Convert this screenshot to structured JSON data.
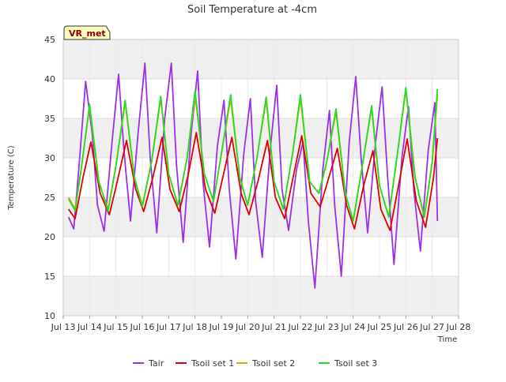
{
  "chart_data": {
    "type": "line",
    "title": "Soil Temperature at -4cm",
    "xlabel": "Time",
    "ylabel": "Temperature (C)",
    "badge": "VR_met",
    "xlim": [
      13,
      28
    ],
    "ylim": [
      10,
      45
    ],
    "x_ticks": [
      13,
      14,
      15,
      16,
      17,
      18,
      19,
      20,
      21,
      22,
      23,
      24,
      25,
      26,
      27,
      28
    ],
    "x_tick_labels": [
      "Jul 13",
      "Jul 14",
      "Jul 15",
      "Jul 16",
      "Jul 17",
      "Jul 18",
      "Jul 19",
      "Jul 20",
      "Jul 21",
      "Jul 22",
      "Jul 23",
      "Jul 24",
      "Jul 25",
      "Jul 26",
      "Jul 27",
      "Jul 28"
    ],
    "y_ticks": [
      10,
      15,
      20,
      25,
      30,
      35,
      40,
      45
    ],
    "grid": true,
    "legend_position": "bottom",
    "series": [
      {
        "name": "Tair",
        "color": "#9b30e8",
        "x": [
          13.2,
          13.4,
          13.6,
          13.85,
          14.1,
          14.3,
          14.55,
          14.85,
          15.1,
          15.3,
          15.55,
          15.85,
          16.1,
          16.3,
          16.55,
          16.85,
          17.1,
          17.3,
          17.55,
          17.85,
          18.1,
          18.3,
          18.55,
          18.85,
          19.1,
          19.3,
          19.55,
          19.85,
          20.1,
          20.3,
          20.55,
          20.85,
          21.1,
          21.3,
          21.55,
          21.85,
          22.1,
          22.3,
          22.55,
          22.85,
          23.1,
          23.3,
          23.55,
          23.85,
          24.1,
          24.3,
          24.55,
          24.85,
          25.1,
          25.3,
          25.55,
          25.85,
          26.1,
          26.3,
          26.55,
          26.85,
          27.1,
          27.2
        ],
        "y": [
          22.5,
          21.0,
          29.0,
          39.7,
          33.0,
          24.0,
          20.7,
          32.0,
          40.6,
          31.0,
          22.0,
          33.5,
          42.0,
          30.0,
          20.5,
          35.0,
          42.0,
          29.0,
          19.3,
          33.0,
          41.0,
          27.0,
          18.7,
          31.5,
          37.3,
          26.0,
          17.2,
          30.5,
          37.5,
          24.5,
          17.4,
          31.0,
          39.2,
          26.0,
          20.8,
          28.5,
          32.0,
          22.0,
          13.5,
          28.5,
          36.0,
          24.0,
          15.0,
          32.0,
          40.3,
          30.0,
          20.5,
          32.0,
          39.0,
          28.0,
          16.5,
          30.0,
          36.5,
          26.0,
          18.2,
          31.0,
          37.0,
          22.0
        ]
      },
      {
        "name": "Tsoil set 1",
        "color": "#e00000",
        "x": [
          13.2,
          13.45,
          13.75,
          14.05,
          14.4,
          14.75,
          15.05,
          15.4,
          15.75,
          16.05,
          16.4,
          16.75,
          17.05,
          17.4,
          17.75,
          18.05,
          18.4,
          18.75,
          19.05,
          19.4,
          19.75,
          20.05,
          20.4,
          20.75,
          21.05,
          21.4,
          21.75,
          22.05,
          22.4,
          22.75,
          23.05,
          23.4,
          23.75,
          24.05,
          24.4,
          24.75,
          25.05,
          25.4,
          25.75,
          26.05,
          26.4,
          26.75,
          27.05,
          27.2
        ],
        "y": [
          23.5,
          22.3,
          27.5,
          32.0,
          25.5,
          22.8,
          27.0,
          32.2,
          26.0,
          23.2,
          27.5,
          32.6,
          26.0,
          23.2,
          28.0,
          33.2,
          26.0,
          23.0,
          27.5,
          32.6,
          25.5,
          22.8,
          27.2,
          32.2,
          25.0,
          22.3,
          28.0,
          32.8,
          25.5,
          23.8,
          27.2,
          31.2,
          24.0,
          21.0,
          26.5,
          30.9,
          23.5,
          20.8,
          27.0,
          32.4,
          24.5,
          21.2,
          27.5,
          32.5
        ]
      },
      {
        "name": "Tsoil set 2",
        "color": "#f0a000",
        "x": [
          13.2,
          13.45,
          13.7,
          14.0,
          14.35,
          14.7,
          15.0,
          15.35,
          15.7,
          16.0,
          16.35,
          16.7,
          17.0,
          17.35,
          17.7,
          18.0,
          18.35,
          18.7,
          19.0,
          19.35,
          19.7,
          20.0,
          20.35,
          20.7,
          21.0,
          21.35,
          21.7,
          22.0,
          22.35,
          22.7,
          23.0,
          23.35,
          23.7,
          24.0,
          24.35,
          24.7,
          25.0,
          25.35,
          25.7,
          26.0,
          26.35,
          26.7,
          27.0,
          27.2
        ],
        "y": [
          25.0,
          23.5,
          29.0,
          36.5,
          27.0,
          23.5,
          29.0,
          37.0,
          27.5,
          24.0,
          29.5,
          37.5,
          28.0,
          24.0,
          30.0,
          38.0,
          28.0,
          24.5,
          30.5,
          37.5,
          27.5,
          24.0,
          30.0,
          37.3,
          27.0,
          23.5,
          30.5,
          37.5,
          27.0,
          25.5,
          29.5,
          35.8,
          25.5,
          22.0,
          29.0,
          36.3,
          26.5,
          22.5,
          31.0,
          38.6,
          27.5,
          22.5,
          29.5,
          38.0
        ]
      },
      {
        "name": "Tsoil set 3",
        "color": "#22dd22",
        "x": [
          13.2,
          13.45,
          13.7,
          14.0,
          14.35,
          14.7,
          15.0,
          15.35,
          15.7,
          16.0,
          16.35,
          16.7,
          17.0,
          17.35,
          17.7,
          18.0,
          18.35,
          18.7,
          19.0,
          19.35,
          19.7,
          20.0,
          20.35,
          20.7,
          21.0,
          21.35,
          21.7,
          22.0,
          22.35,
          22.7,
          23.0,
          23.35,
          23.7,
          24.0,
          24.35,
          24.7,
          25.0,
          25.35,
          25.7,
          26.0,
          26.35,
          26.7,
          27.0,
          27.2
        ],
        "y": [
          24.8,
          23.3,
          29.0,
          36.8,
          27.0,
          23.3,
          29.0,
          37.3,
          27.5,
          23.8,
          29.5,
          37.8,
          28.0,
          24.0,
          30.0,
          38.5,
          28.0,
          24.5,
          30.5,
          38.0,
          27.5,
          24.0,
          30.0,
          37.7,
          27.0,
          23.5,
          30.5,
          38.0,
          27.0,
          25.5,
          29.5,
          36.2,
          25.5,
          22.0,
          29.0,
          36.6,
          26.5,
          22.5,
          31.0,
          38.9,
          27.5,
          22.5,
          29.5,
          38.7
        ]
      }
    ]
  }
}
